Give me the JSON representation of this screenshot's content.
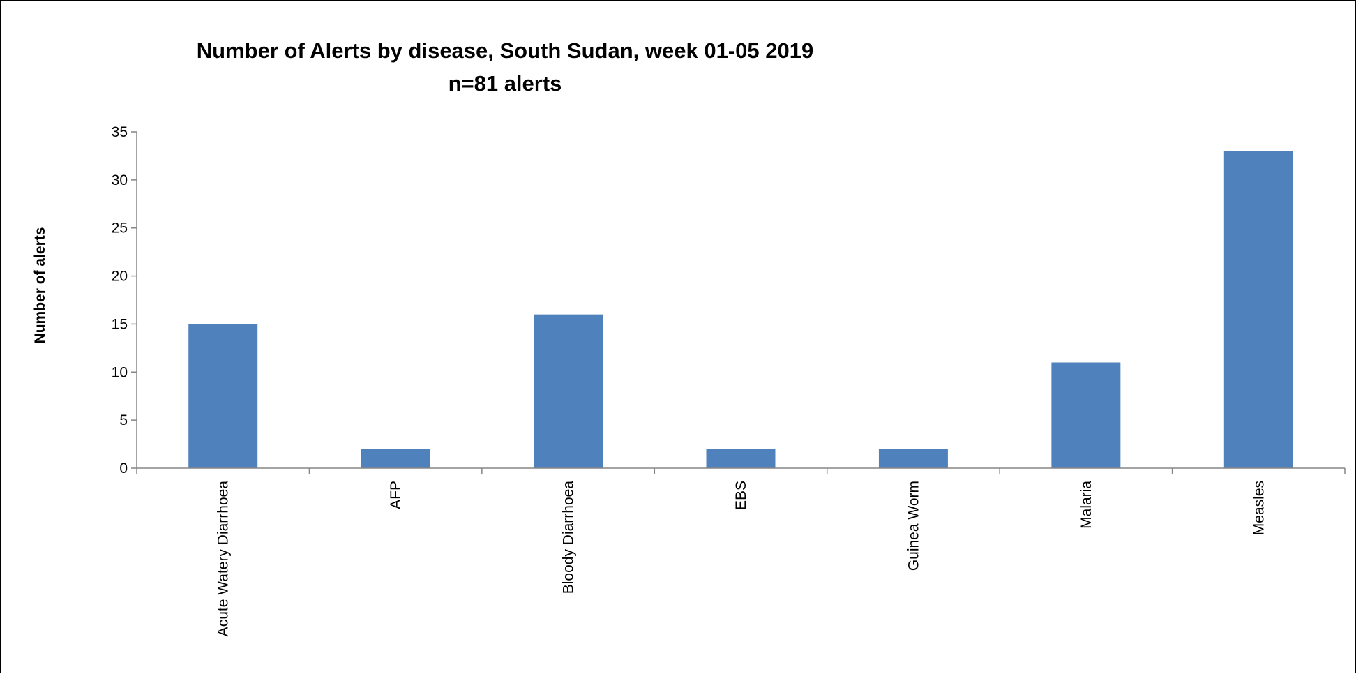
{
  "chart_data": {
    "type": "bar",
    "title": "Number of Alerts by disease, South Sudan, week 01-05 2019",
    "subtitle": "n=81 alerts",
    "xlabel": "",
    "ylabel": "Number of alerts",
    "categories": [
      "Acute Watery Diarrhoea",
      "AFP",
      "Bloody Diarrhoea",
      "EBS",
      "Guinea Worm",
      "Malaria",
      "Measles"
    ],
    "values": [
      15,
      2,
      16,
      2,
      2,
      11,
      33
    ],
    "ylim": [
      0,
      35
    ],
    "yticks": [
      0,
      5,
      10,
      15,
      20,
      25,
      30,
      35
    ],
    "grid": false,
    "legend": "none",
    "bar_color": "#4F81BD",
    "axis_color": "#868686"
  }
}
